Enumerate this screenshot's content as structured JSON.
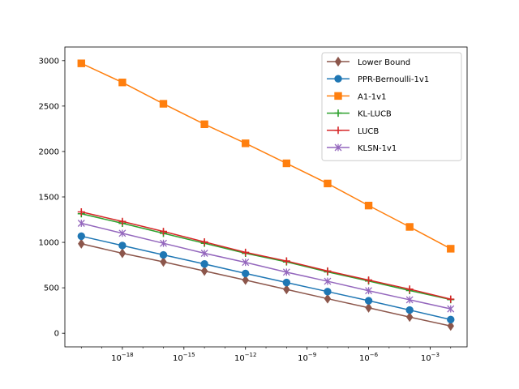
{
  "chart_data": {
    "type": "line",
    "title": "",
    "xlabel": "",
    "ylabel": "",
    "xscale": "log",
    "x": [
      1e-20,
      1e-18,
      1e-16,
      1e-14,
      1e-12,
      1e-10,
      1e-08,
      1e-06,
      0.0001,
      0.01
    ],
    "xlim": [
      1.58e-21,
      0.063
    ],
    "ylim": [
      -150,
      3150
    ],
    "x_ticks": [
      {
        "value": 1e-18,
        "base": "10",
        "exp": "−18"
      },
      {
        "value": 1e-15,
        "base": "10",
        "exp": "−15"
      },
      {
        "value": 1e-12,
        "base": "10",
        "exp": "−12"
      },
      {
        "value": 1e-09,
        "base": "10",
        "exp": "−9"
      },
      {
        "value": 1e-06,
        "base": "10",
        "exp": "−6"
      },
      {
        "value": 0.001,
        "base": "10",
        "exp": "−3"
      }
    ],
    "y_ticks": [
      0,
      500,
      1000,
      1500,
      2000,
      2500,
      3000
    ],
    "grid": false,
    "legend_position": "top-right",
    "series": [
      {
        "name": "Lower Bound",
        "color": "#8c564b",
        "marker": "diamond",
        "values": [
          985,
          880,
          785,
          685,
          585,
          482,
          380,
          280,
          178,
          80
        ]
      },
      {
        "name": "PPR-Bernoulli-1v1",
        "color": "#1f77b4",
        "marker": "circle",
        "values": [
          1068,
          965,
          862,
          762,
          658,
          558,
          458,
          358,
          255,
          150
        ]
      },
      {
        "name": "A1-1v1",
        "color": "#ff7f0e",
        "marker": "square",
        "values": [
          2970,
          2760,
          2525,
          2300,
          2090,
          1870,
          1648,
          1405,
          1170,
          930
        ]
      },
      {
        "name": "KL-LUCB",
        "color": "#2ca02c",
        "marker": "plus",
        "values": [
          1315,
          1210,
          1100,
          990,
          880,
          785,
          675,
          575,
          470,
          370
        ]
      },
      {
        "name": "LUCB",
        "color": "#d62728",
        "marker": "plus",
        "values": [
          1335,
          1230,
          1120,
          1005,
          890,
          795,
          685,
          585,
          485,
          375
        ]
      },
      {
        "name": "KLSN-1v1",
        "color": "#9467bd",
        "marker": "x",
        "values": [
          1210,
          1100,
          990,
          880,
          780,
          672,
          572,
          468,
          368,
          268
        ]
      }
    ]
  }
}
